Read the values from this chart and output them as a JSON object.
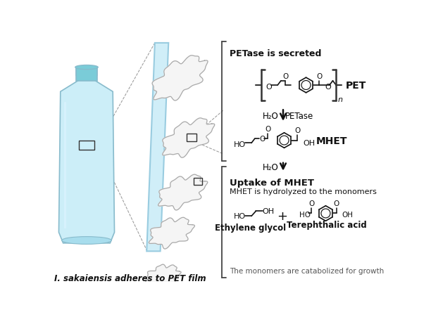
{
  "bg_color": "#ffffff",
  "title_italic": "I. sakaiensis adheres to PET film",
  "section1_title": "PETase is secreted",
  "section2_title": "Uptake of MHET",
  "section2_sub": "MHET is hydrolyzed to the monomers",
  "section2_footer": "The monomers are catabolized for growth",
  "label_PET": "PET",
  "label_MHET": "MHET",
  "label_h2o1": "H₂O",
  "label_petase": "PETase",
  "label_h2o2": "H₂O",
  "label_ethylene": "Ethylene glycol",
  "label_terephth": "Terephthalic acid",
  "bottle_color": "#cceef8",
  "bottle_cap_color": "#7accd8",
  "bottle_edge_color": "#88bbcc",
  "pet_film_color": "#d0eef8",
  "pet_film_edge": "#99cce0",
  "bacteria_color": "#f5f5f5",
  "bacteria_outline": "#aaaaaa",
  "arrow_color": "#111111",
  "text_color": "#111111",
  "bracket_color": "#444444",
  "dashed_color": "#999999",
  "chem_color": "#111111",
  "footer_color": "#555555"
}
